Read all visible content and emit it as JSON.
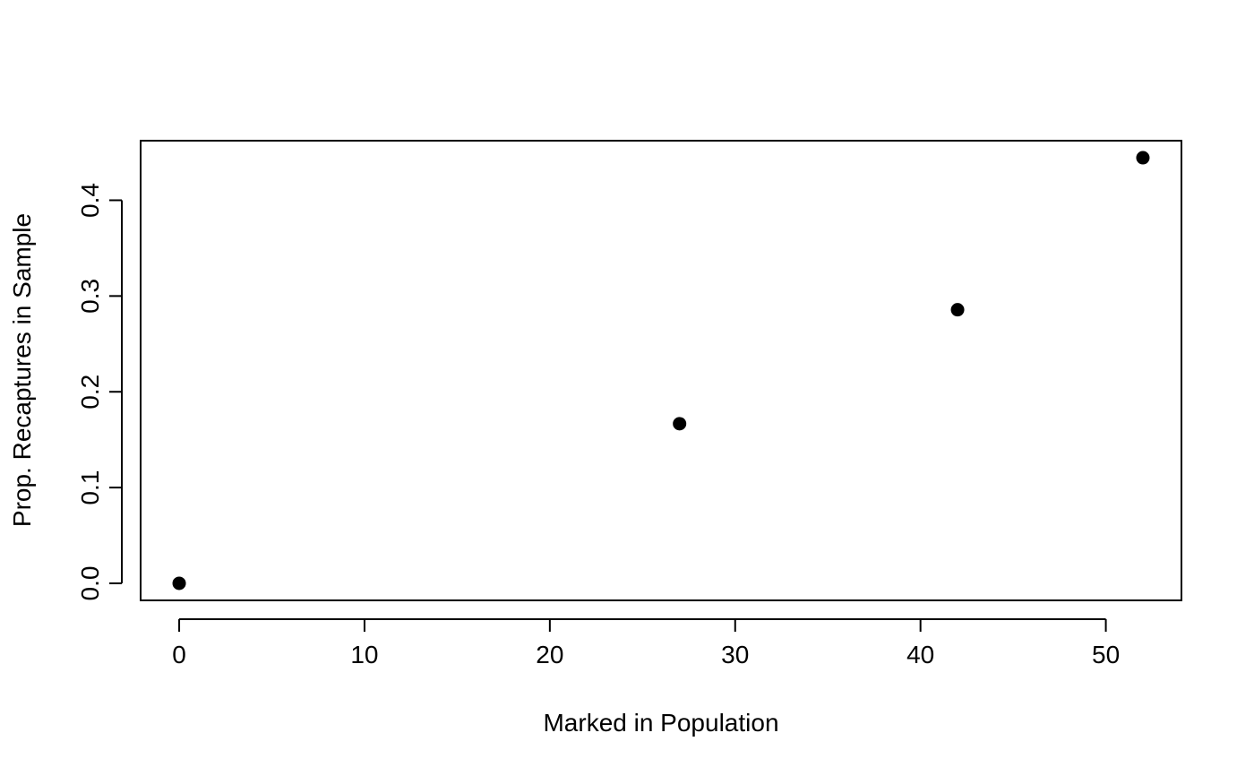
{
  "chart_data": {
    "type": "scatter",
    "title": "",
    "xlabel": "Marked in Population",
    "ylabel": "Prop. Recaptures in Sample",
    "xlim": [
      -2.08,
      54.08
    ],
    "ylim": [
      -0.0178,
      0.4622
    ],
    "x_ticks": [
      0,
      10,
      20,
      30,
      40,
      50
    ],
    "y_ticks": [
      0.0,
      0.1,
      0.2,
      0.3,
      0.4
    ],
    "x_tick_labels": [
      "0",
      "10",
      "20",
      "30",
      "40",
      "50"
    ],
    "y_tick_labels": [
      "0.0",
      "0.1",
      "0.2",
      "0.3",
      "0.4"
    ],
    "grid": false,
    "legend": "none",
    "point_color": "#000000",
    "x": [
      0,
      27,
      42,
      52
    ],
    "y": [
      0.0,
      0.1667,
      0.2857,
      0.4444
    ]
  }
}
